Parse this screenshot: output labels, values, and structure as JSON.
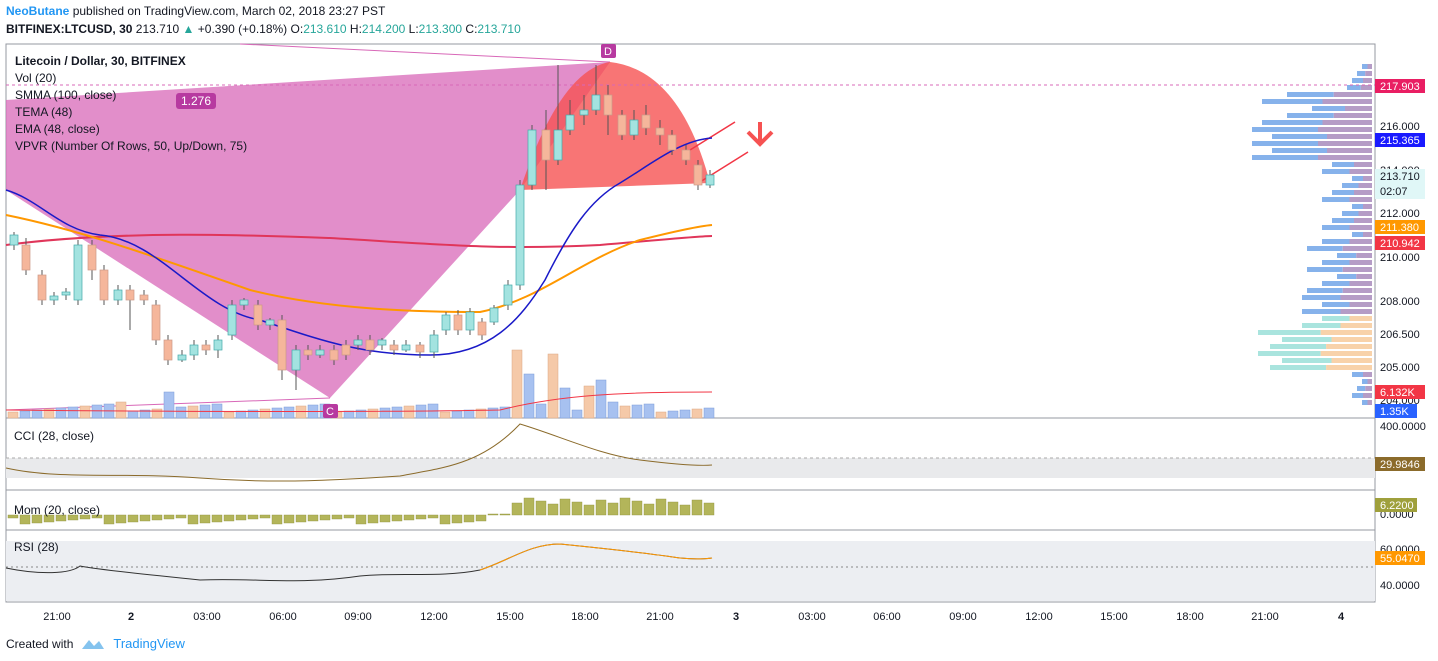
{
  "header": {
    "author": "NeoButane",
    "published_text": "published on TradingView.com, March 02, 2018 23:27 PST",
    "symbol": "BITFINEX:LTCUSD, 30",
    "last": "213.710",
    "change": "+0.390 (+0.18%)",
    "o_label": "O:",
    "o": "213.610",
    "h_label": "H:",
    "h": "214.200",
    "l_label": "L:",
    "l": "213.300",
    "c_label": "C:",
    "c": "213.710"
  },
  "legend": {
    "title": "Litecoin / Dollar, 30, BITFINEX",
    "items": [
      "Vol (20)",
      "SMMA (100, close)",
      "TEMA (48)",
      "EMA (48, close)",
      "VPVR (Number Of Rows, 50, Up/Down, 75)"
    ]
  },
  "annotations": {
    "fib_ratio": "1.276",
    "point_c": "C",
    "point_d": "D"
  },
  "price_axis": {
    "ticks": [
      "216.000",
      "214.000",
      "212.000",
      "210.000",
      "208.000",
      "206.500",
      "205.000",
      "204.000"
    ],
    "badges": [
      {
        "text": "217.903",
        "color": "#e91e63"
      },
      {
        "text": "215.365",
        "color": "#1a1aff"
      },
      {
        "text": "213.710",
        "color": "#ffffff"
      },
      {
        "text": "02:07",
        "color": "#ffffff"
      },
      {
        "text": "211.380",
        "color": "#ff9800"
      },
      {
        "text": "210.942",
        "color": "#f23645"
      },
      {
        "text": "6.132K",
        "color": "#f23645"
      },
      {
        "text": "1.35K",
        "color": "#2962ff"
      }
    ]
  },
  "cci": {
    "label": "CCI (28, close)",
    "ticks": [
      "400.0000"
    ],
    "value": "29.9846"
  },
  "mom": {
    "label": "Mom (20, close)",
    "ticks": [
      "0.0000"
    ],
    "value": "6.2200"
  },
  "rsi": {
    "label": "RSI (28)",
    "ticks": [
      "60.0000",
      "40.0000"
    ],
    "value": "55.0470"
  },
  "time_axis": [
    "21:00",
    "2",
    "03:00",
    "06:00",
    "09:00",
    "12:00",
    "15:00",
    "18:00",
    "21:00",
    "3",
    "03:00",
    "06:00",
    "09:00",
    "12:00",
    "15:00",
    "18:00",
    "21:00",
    "4"
  ],
  "footer": {
    "created_with": "Created with",
    "brand": "TradingView"
  },
  "colors": {
    "up": "#a3e3e0",
    "down": "#f5b69b",
    "pattern": "#d868b8",
    "bearish_zone": "#f65252",
    "smma": "#e0365a",
    "tema": "#1a1ac8",
    "ema": "#ff9800"
  }
}
